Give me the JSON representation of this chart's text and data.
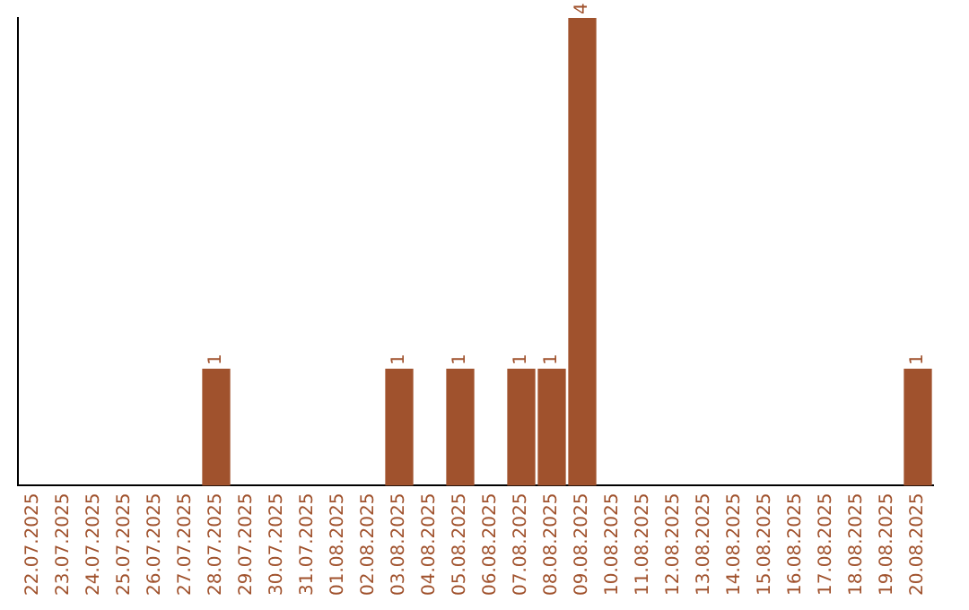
{
  "chart_data": {
    "type": "bar",
    "categories": [
      "22.07.2025",
      "23.07.2025",
      "24.07.2025",
      "25.07.2025",
      "26.07.2025",
      "27.07.2025",
      "28.07.2025",
      "29.07.2025",
      "30.07.2025",
      "31.07.2025",
      "01.08.2025",
      "02.08.2025",
      "03.08.2025",
      "04.08.2025",
      "05.08.2025",
      "06.08.2025",
      "07.08.2025",
      "08.08.2025",
      "09.08.2025",
      "10.08.2025",
      "11.08.2025",
      "12.08.2025",
      "13.08.2025",
      "14.08.2025",
      "15.08.2025",
      "16.08.2025",
      "17.08.2025",
      "18.08.2025",
      "19.08.2025",
      "20.08.2025"
    ],
    "values": [
      0,
      0,
      0,
      0,
      0,
      0,
      1,
      0,
      0,
      0,
      0,
      0,
      1,
      0,
      1,
      0,
      1,
      1,
      4,
      0,
      0,
      0,
      0,
      0,
      0,
      0,
      0,
      0,
      0,
      1
    ],
    "value_labels": [
      null,
      null,
      null,
      null,
      null,
      null,
      "1",
      null,
      null,
      null,
      null,
      null,
      "1",
      null,
      "1",
      null,
      "1",
      "1",
      "4",
      null,
      null,
      null,
      null,
      null,
      null,
      null,
      null,
      null,
      null,
      "1"
    ],
    "color": "#a0522d",
    "grid": false,
    "legend": false,
    "tick_labels": "x"
  }
}
